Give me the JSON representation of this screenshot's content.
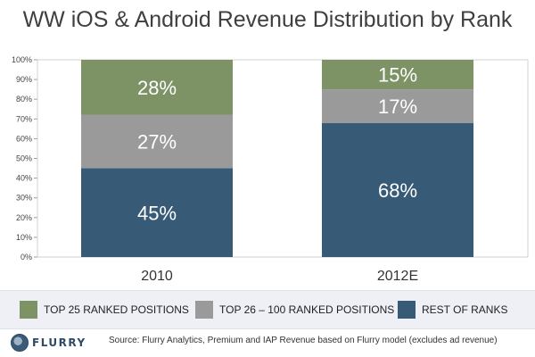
{
  "chart_data": {
    "type": "bar",
    "stacked": true,
    "title": "WW iOS & Android Revenue Distribution by Rank",
    "categories": [
      "2010",
      "2012E"
    ],
    "series": [
      {
        "name": "REST OF RANKS",
        "values": [
          45,
          68
        ],
        "labels": [
          "45%",
          "68%"
        ],
        "color": "#375a77"
      },
      {
        "name": "TOP 26 – 100 RANKED POSITIONS",
        "values": [
          27,
          17
        ],
        "labels": [
          "27%",
          "17%"
        ],
        "color": "#9a9a9a"
      },
      {
        "name": "TOP 25 RANKED POSITIONS",
        "values": [
          28,
          15
        ],
        "labels": [
          "28%",
          "15%"
        ],
        "color": "#7d9265"
      }
    ],
    "ylim": [
      0,
      100
    ],
    "yticks": [
      "0%",
      "10%",
      "20%",
      "30%",
      "40%",
      "50%",
      "60%",
      "70%",
      "80%",
      "90%",
      "100%"
    ],
    "grid": false,
    "legend_position": "bottom"
  },
  "legend": [
    {
      "label": "TOP 25 RANKED POSITIONS",
      "color": "#7d9265"
    },
    {
      "label": "TOP 26 – 100 RANKED POSITIONS",
      "color": "#9a9a9a"
    },
    {
      "label": "REST OF RANKS",
      "color": "#375a77"
    }
  ],
  "footer": {
    "logo_text": "FLURRY",
    "source": "Source: Flurry Analytics, Premium and IAP Revenue based on Flurry model (excludes ad revenue)"
  }
}
